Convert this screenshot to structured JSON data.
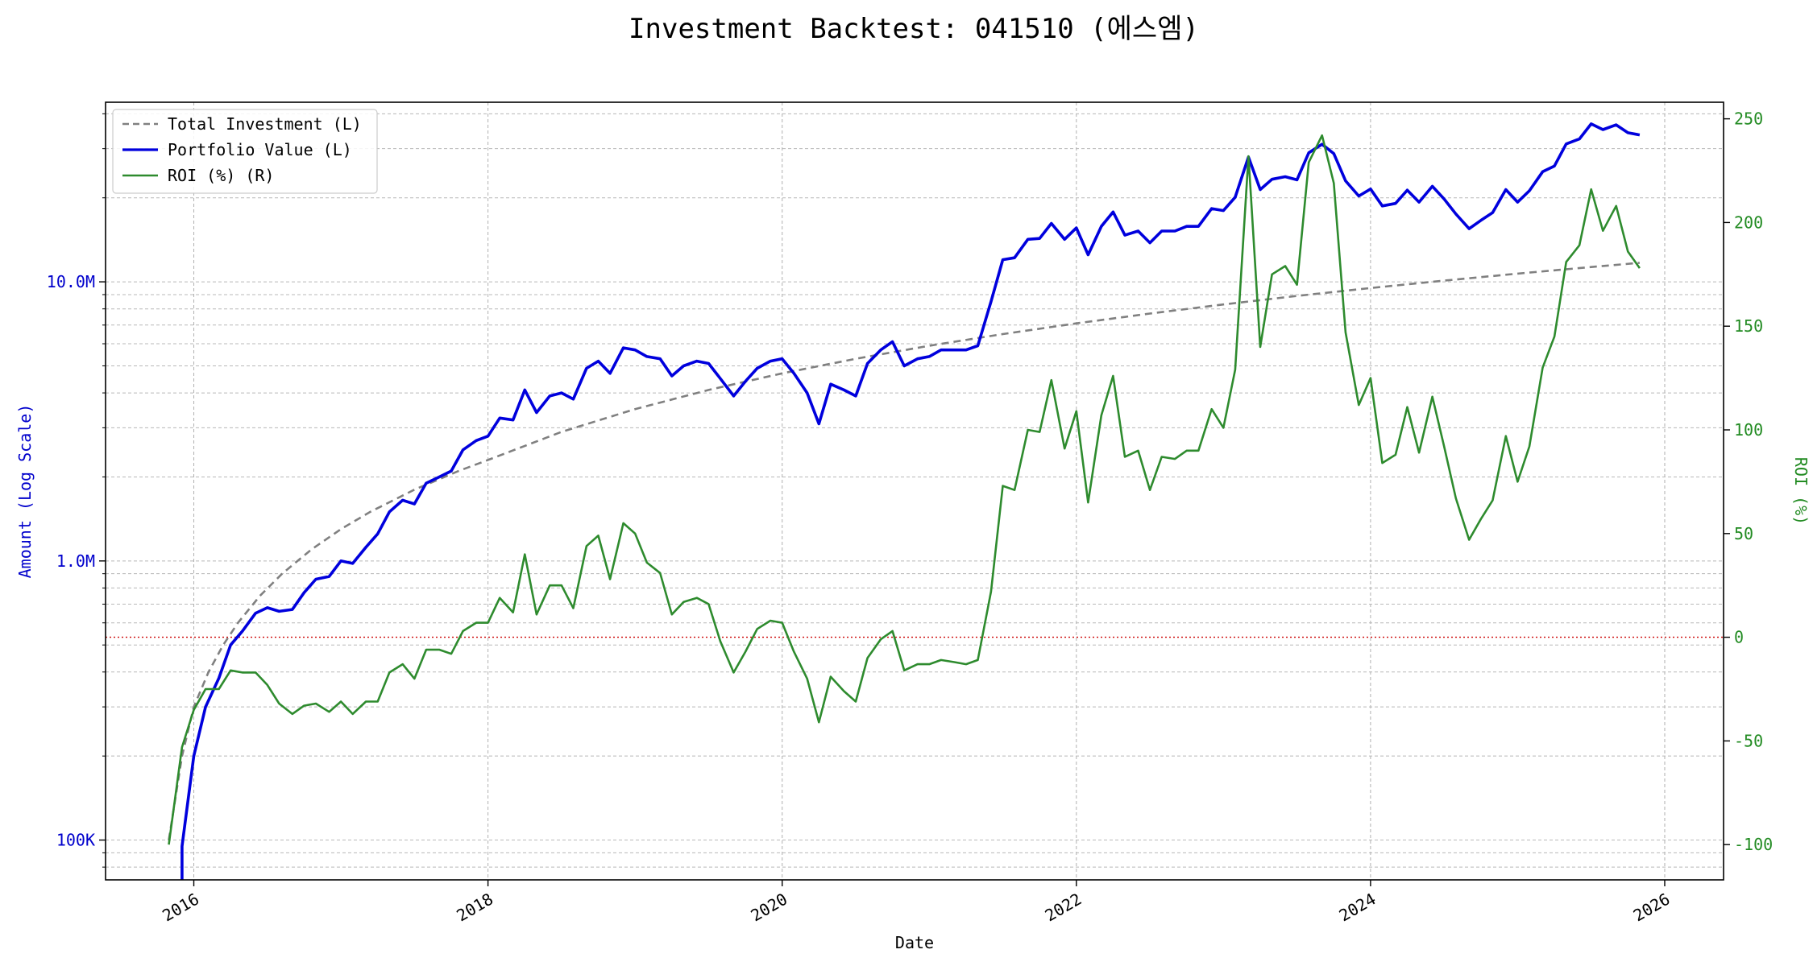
{
  "chart_data": {
    "type": "line",
    "title": "Investment Backtest: 041510 (에스엠)",
    "xlabel": "Date",
    "ylabel_left": "Amount (Log Scale)",
    "ylabel_right": "ROI (%)",
    "x_ticks": [
      "2016",
      "2018",
      "2020",
      "2022",
      "2024",
      "2026"
    ],
    "x_range": [
      2015.4,
      2026.4
    ],
    "y_left_scale": "log",
    "y_left_range": [
      72000,
      44000000
    ],
    "y_left_ticks": [
      {
        "value": 100000,
        "label": "100K"
      },
      {
        "value": 1000000,
        "label": "1.0M"
      },
      {
        "value": 10000000,
        "label": "10.0M"
      }
    ],
    "y_right_range": [
      -117,
      258
    ],
    "y_right_ticks": [
      -100,
      -50,
      0,
      50,
      100,
      150,
      200,
      250
    ],
    "reference_line": {
      "axis": "right",
      "value": 0,
      "color": "#cc0000",
      "style": "dotted"
    },
    "grid": true,
    "legend_position": "top-left",
    "legend": [
      {
        "label": "Total Investment (L)",
        "color": "#808080",
        "style": "dashed"
      },
      {
        "label": "Portfolio Value (L)",
        "color": "#0000dd",
        "style": "solid"
      },
      {
        "label": "ROI (%) (R)",
        "color": "#2e8b2e",
        "style": "solid"
      }
    ],
    "series": [
      {
        "name": "Total Investment (L)",
        "axis": "left",
        "color": "#808080",
        "points": [
          [
            2015.83,
            100000
          ],
          [
            2015.92,
            200000
          ],
          [
            2016.0,
            300000
          ],
          [
            2016.1,
            400000
          ],
          [
            2016.2,
            500000
          ],
          [
            2016.3,
            600000
          ],
          [
            2016.45,
            750000
          ],
          [
            2016.6,
            900000
          ],
          [
            2016.8,
            1100000
          ],
          [
            2017.0,
            1300000
          ],
          [
            2017.2,
            1500000
          ],
          [
            2017.5,
            1800000
          ],
          [
            2017.8,
            2100000
          ],
          [
            2018.0,
            2300000
          ],
          [
            2018.5,
            2900000
          ],
          [
            2019.0,
            3500000
          ],
          [
            2019.5,
            4100000
          ],
          [
            2020.0,
            4700000
          ],
          [
            2020.5,
            5300000
          ],
          [
            2021.0,
            5900000
          ],
          [
            2021.5,
            6500000
          ],
          [
            2022.0,
            7100000
          ],
          [
            2022.5,
            7700000
          ],
          [
            2023.0,
            8300000
          ],
          [
            2023.5,
            8900000
          ],
          [
            2024.0,
            9500000
          ],
          [
            2024.5,
            10100000
          ],
          [
            2025.0,
            10700000
          ],
          [
            2025.5,
            11300000
          ],
          [
            2025.83,
            11700000
          ]
        ]
      },
      {
        "name": "Portfolio Value (L)",
        "axis": "left",
        "color": "#0000dd",
        "points": [
          [
            2015.92,
            70000
          ],
          [
            2015.92,
            95000
          ],
          [
            2016.0,
            200000
          ],
          [
            2016.08,
            300000
          ],
          [
            2016.17,
            380000
          ],
          [
            2016.25,
            500000
          ],
          [
            2016.33,
            560000
          ],
          [
            2016.42,
            650000
          ],
          [
            2016.5,
            680000
          ],
          [
            2016.58,
            660000
          ],
          [
            2016.67,
            670000
          ],
          [
            2016.75,
            770000
          ],
          [
            2016.83,
            860000
          ],
          [
            2016.92,
            880000
          ],
          [
            2017.0,
            1000000
          ],
          [
            2017.08,
            980000
          ],
          [
            2017.17,
            1120000
          ],
          [
            2017.25,
            1250000
          ],
          [
            2017.33,
            1500000
          ],
          [
            2017.42,
            1650000
          ],
          [
            2017.5,
            1600000
          ],
          [
            2017.58,
            1900000
          ],
          [
            2017.67,
            2000000
          ],
          [
            2017.75,
            2100000
          ],
          [
            2017.83,
            2500000
          ],
          [
            2017.92,
            2700000
          ],
          [
            2018.0,
            2800000
          ],
          [
            2018.08,
            3250000
          ],
          [
            2018.17,
            3200000
          ],
          [
            2018.25,
            4100000
          ],
          [
            2018.33,
            3400000
          ],
          [
            2018.42,
            3900000
          ],
          [
            2018.5,
            4000000
          ],
          [
            2018.58,
            3800000
          ],
          [
            2018.67,
            4900000
          ],
          [
            2018.75,
            5200000
          ],
          [
            2018.83,
            4700000
          ],
          [
            2018.92,
            5800000
          ],
          [
            2019.0,
            5700000
          ],
          [
            2019.08,
            5400000
          ],
          [
            2019.17,
            5300000
          ],
          [
            2019.25,
            4600000
          ],
          [
            2019.33,
            5000000
          ],
          [
            2019.42,
            5200000
          ],
          [
            2019.5,
            5100000
          ],
          [
            2019.58,
            4500000
          ],
          [
            2019.67,
            3900000
          ],
          [
            2019.75,
            4400000
          ],
          [
            2019.83,
            4900000
          ],
          [
            2019.92,
            5200000
          ],
          [
            2020.0,
            5300000
          ],
          [
            2020.08,
            4700000
          ],
          [
            2020.17,
            4000000
          ],
          [
            2020.25,
            3100000
          ],
          [
            2020.33,
            4300000
          ],
          [
            2020.42,
            4100000
          ],
          [
            2020.5,
            3900000
          ],
          [
            2020.58,
            5100000
          ],
          [
            2020.67,
            5700000
          ],
          [
            2020.75,
            6100000
          ],
          [
            2020.83,
            5000000
          ],
          [
            2020.92,
            5300000
          ],
          [
            2021.0,
            5400000
          ],
          [
            2021.08,
            5700000
          ],
          [
            2021.17,
            5700000
          ],
          [
            2021.25,
            5700000
          ],
          [
            2021.33,
            5900000
          ],
          [
            2021.42,
            8500000
          ],
          [
            2021.5,
            12000000
          ],
          [
            2021.58,
            12200000
          ],
          [
            2021.67,
            14200000
          ],
          [
            2021.75,
            14300000
          ],
          [
            2021.83,
            16200000
          ],
          [
            2021.92,
            14200000
          ],
          [
            2022.0,
            15600000
          ],
          [
            2022.08,
            12500000
          ],
          [
            2022.17,
            15800000
          ],
          [
            2022.25,
            17800000
          ],
          [
            2022.33,
            14700000
          ],
          [
            2022.42,
            15200000
          ],
          [
            2022.5,
            13800000
          ],
          [
            2022.58,
            15200000
          ],
          [
            2022.67,
            15200000
          ],
          [
            2022.75,
            15800000
          ],
          [
            2022.83,
            15800000
          ],
          [
            2022.92,
            18300000
          ],
          [
            2023.0,
            18000000
          ],
          [
            2023.08,
            20100000
          ],
          [
            2023.17,
            28000000
          ],
          [
            2023.25,
            21400000
          ],
          [
            2023.33,
            23300000
          ],
          [
            2023.42,
            23800000
          ],
          [
            2023.5,
            23200000
          ],
          [
            2023.58,
            29000000
          ],
          [
            2023.67,
            31100000
          ],
          [
            2023.75,
            28800000
          ],
          [
            2023.83,
            23000000
          ],
          [
            2023.92,
            20300000
          ],
          [
            2024.0,
            21500000
          ],
          [
            2024.08,
            18700000
          ],
          [
            2024.17,
            19100000
          ],
          [
            2024.25,
            21300000
          ],
          [
            2024.33,
            19300000
          ],
          [
            2024.42,
            22000000
          ],
          [
            2024.5,
            19800000
          ],
          [
            2024.58,
            17500000
          ],
          [
            2024.67,
            15500000
          ],
          [
            2024.75,
            16600000
          ],
          [
            2024.83,
            17700000
          ],
          [
            2024.92,
            21400000
          ],
          [
            2025.0,
            19300000
          ],
          [
            2025.08,
            21200000
          ],
          [
            2025.17,
            24800000
          ],
          [
            2025.25,
            26000000
          ],
          [
            2025.33,
            31200000
          ],
          [
            2025.42,
            32500000
          ],
          [
            2025.5,
            36800000
          ],
          [
            2025.58,
            35100000
          ],
          [
            2025.67,
            36500000
          ],
          [
            2025.75,
            34200000
          ],
          [
            2025.83,
            33600000
          ]
        ]
      },
      {
        "name": "ROI (%) (R)",
        "axis": "right",
        "color": "#2e8b2e",
        "points": [
          [
            2015.83,
            -100
          ],
          [
            2015.92,
            -53
          ],
          [
            2016.0,
            -35
          ],
          [
            2016.08,
            -25
          ],
          [
            2016.17,
            -25
          ],
          [
            2016.25,
            -16
          ],
          [
            2016.33,
            -17
          ],
          [
            2016.42,
            -17
          ],
          [
            2016.5,
            -23
          ],
          [
            2016.58,
            -32
          ],
          [
            2016.67,
            -37
          ],
          [
            2016.75,
            -33
          ],
          [
            2016.83,
            -32
          ],
          [
            2016.92,
            -36
          ],
          [
            2017.0,
            -31
          ],
          [
            2017.08,
            -37
          ],
          [
            2017.17,
            -31
          ],
          [
            2017.25,
            -31
          ],
          [
            2017.33,
            -17
          ],
          [
            2017.42,
            -13
          ],
          [
            2017.5,
            -20
          ],
          [
            2017.58,
            -6
          ],
          [
            2017.67,
            -6
          ],
          [
            2017.75,
            -8
          ],
          [
            2017.83,
            3
          ],
          [
            2017.92,
            7
          ],
          [
            2018.0,
            7
          ],
          [
            2018.08,
            19
          ],
          [
            2018.17,
            12
          ],
          [
            2018.25,
            40
          ],
          [
            2018.33,
            11
          ],
          [
            2018.42,
            25
          ],
          [
            2018.5,
            25
          ],
          [
            2018.58,
            14
          ],
          [
            2018.67,
            44
          ],
          [
            2018.75,
            49
          ],
          [
            2018.83,
            28
          ],
          [
            2018.92,
            55
          ],
          [
            2019.0,
            50
          ],
          [
            2019.08,
            36
          ],
          [
            2019.17,
            31
          ],
          [
            2019.25,
            11
          ],
          [
            2019.33,
            17
          ],
          [
            2019.42,
            19
          ],
          [
            2019.5,
            16
          ],
          [
            2019.58,
            -2
          ],
          [
            2019.67,
            -17
          ],
          [
            2019.75,
            -7
          ],
          [
            2019.83,
            4
          ],
          [
            2019.92,
            8
          ],
          [
            2020.0,
            7
          ],
          [
            2020.08,
            -7
          ],
          [
            2020.17,
            -20
          ],
          [
            2020.25,
            -41
          ],
          [
            2020.33,
            -19
          ],
          [
            2020.42,
            -26
          ],
          [
            2020.5,
            -31
          ],
          [
            2020.58,
            -10
          ],
          [
            2020.67,
            -1
          ],
          [
            2020.75,
            3
          ],
          [
            2020.83,
            -16
          ],
          [
            2020.92,
            -13
          ],
          [
            2021.0,
            -13
          ],
          [
            2021.08,
            -11
          ],
          [
            2021.17,
            -12
          ],
          [
            2021.25,
            -13
          ],
          [
            2021.33,
            -11
          ],
          [
            2021.42,
            22
          ],
          [
            2021.5,
            73
          ],
          [
            2021.58,
            71
          ],
          [
            2021.67,
            100
          ],
          [
            2021.75,
            99
          ],
          [
            2021.83,
            124
          ],
          [
            2021.92,
            91
          ],
          [
            2022.0,
            109
          ],
          [
            2022.08,
            65
          ],
          [
            2022.17,
            107
          ],
          [
            2022.25,
            126
          ],
          [
            2022.33,
            87
          ],
          [
            2022.42,
            90
          ],
          [
            2022.5,
            71
          ],
          [
            2022.58,
            87
          ],
          [
            2022.67,
            86
          ],
          [
            2022.75,
            90
          ],
          [
            2022.83,
            90
          ],
          [
            2022.92,
            110
          ],
          [
            2023.0,
            101
          ],
          [
            2023.08,
            129
          ],
          [
            2023.17,
            232
          ],
          [
            2023.25,
            140
          ],
          [
            2023.33,
            175
          ],
          [
            2023.42,
            179
          ],
          [
            2023.5,
            170
          ],
          [
            2023.58,
            229
          ],
          [
            2023.67,
            242
          ],
          [
            2023.75,
            219
          ],
          [
            2023.83,
            147
          ],
          [
            2023.92,
            112
          ],
          [
            2024.0,
            125
          ],
          [
            2024.08,
            84
          ],
          [
            2024.17,
            88
          ],
          [
            2024.25,
            111
          ],
          [
            2024.33,
            89
          ],
          [
            2024.42,
            116
          ],
          [
            2024.5,
            92
          ],
          [
            2024.58,
            67
          ],
          [
            2024.67,
            47
          ],
          [
            2024.75,
            57
          ],
          [
            2024.83,
            66
          ],
          [
            2024.92,
            97
          ],
          [
            2025.0,
            75
          ],
          [
            2025.08,
            92
          ],
          [
            2025.17,
            130
          ],
          [
            2025.25,
            145
          ],
          [
            2025.33,
            181
          ],
          [
            2025.42,
            189
          ],
          [
            2025.5,
            216
          ],
          [
            2025.58,
            196
          ],
          [
            2025.67,
            208
          ],
          [
            2025.75,
            186
          ],
          [
            2025.83,
            178
          ]
        ]
      }
    ]
  }
}
